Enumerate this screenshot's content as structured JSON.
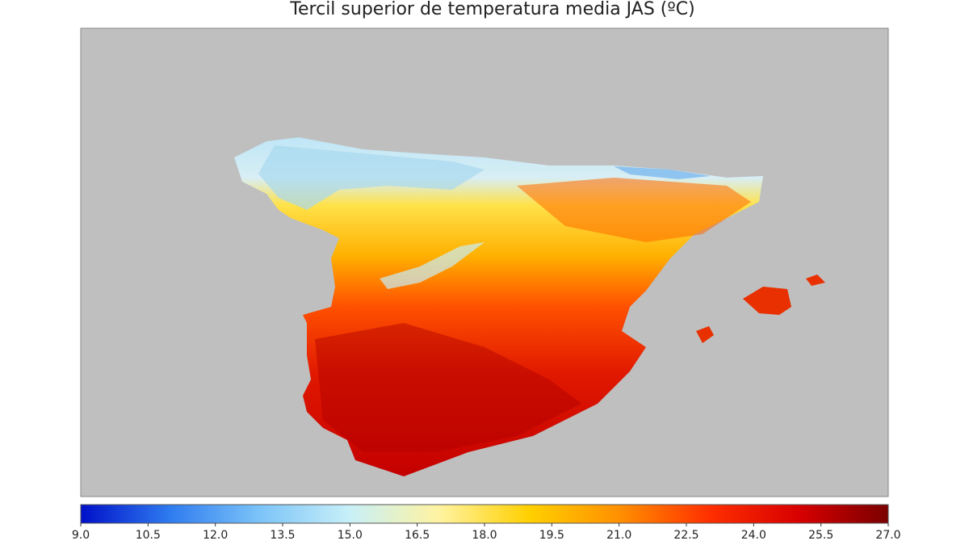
{
  "map": {
    "title": "Tercil superior de temperatura media JAS (ºC)",
    "colorbar": {
      "range": [
        9,
        27
      ],
      "ticks": [
        {
          "value": 9,
          "label": "9.0"
        },
        10.5,
        {
          "value": 12,
          "label": "12.0"
        },
        13.5,
        {
          "value": 15,
          "label": "15.0"
        },
        16.5,
        {
          "value": 18,
          "label": "18.0"
        },
        19.5,
        {
          "value": 21,
          "label": "21.0"
        },
        22.5,
        {
          "value": 24,
          "label": "24.0"
        },
        25.5,
        {
          "value": 27,
          "label": "27.0"
        }
      ],
      "colors": [
        "#0010c8",
        "#2f7cf0",
        "#7cc4f8",
        "#c8f0f8",
        "#fff3a0",
        "#ffd000",
        "#ff9000",
        "#ff3000",
        "#d80000",
        "#7a0000"
      ]
    }
  }
}
